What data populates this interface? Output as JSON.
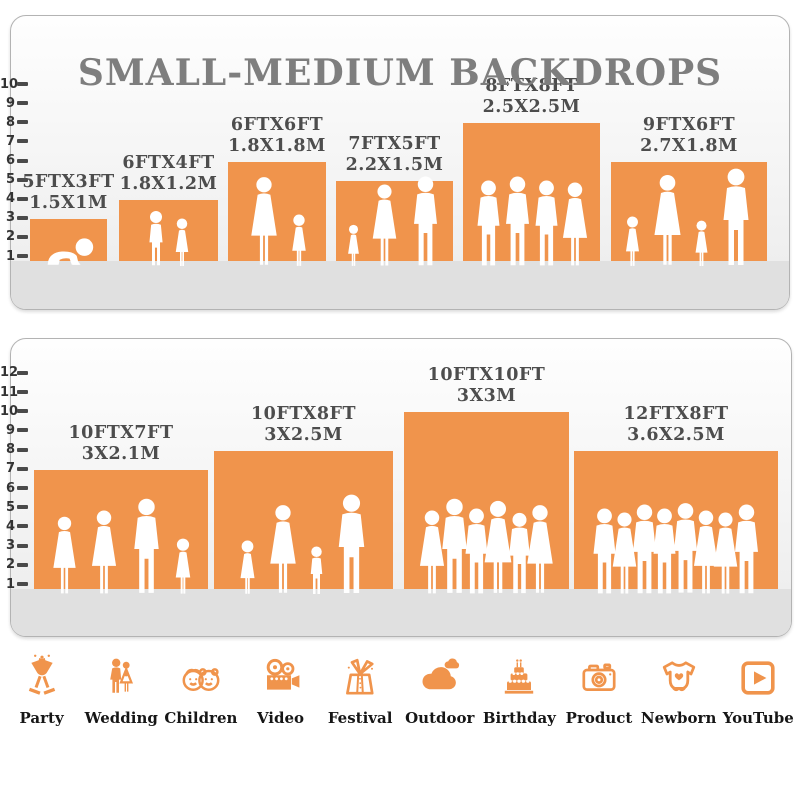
{
  "title": "SMALL-MEDIUM BACKDROPS",
  "colors": {
    "orange": "#F0944C",
    "title_text": "#7E7E7E",
    "bar_label_text": "#4D4D4D",
    "tick_text": "#333333",
    "panel_border": "#B3B3B3",
    "floor": "#E0E0E0",
    "silhouette": "#FFFFFF"
  },
  "chart_data": [
    {
      "type": "bar",
      "panel": "top",
      "title": "",
      "yticks": [
        1,
        2,
        3,
        4,
        5,
        6,
        7,
        8,
        9,
        10
      ],
      "ylim": [
        0,
        10
      ],
      "grid": false,
      "legend": false,
      "categories": [
        "5FTX3FT",
        "6FTX4FT",
        "6FTX6FT",
        "7FTX5FT",
        "8FTX8FT",
        "9FTX6FT"
      ],
      "categories_metric": [
        "1.5X1M",
        "1.8X1.2M",
        "1.8X1.8M",
        "2.2X1.5M",
        "2.5X2.5M",
        "2.7X1.8M"
      ],
      "values": [
        3,
        4,
        6,
        5,
        8,
        6
      ],
      "figures": [
        [
          "baby"
        ],
        [
          "boy",
          "girl"
        ],
        [
          "woman",
          "girl"
        ],
        [
          "girl",
          "woman",
          "man"
        ],
        [
          "man",
          "man",
          "man",
          "woman"
        ],
        [
          "girl",
          "woman",
          "girl",
          "man"
        ]
      ]
    },
    {
      "type": "bar",
      "panel": "bottom",
      "title": "",
      "yticks": [
        1,
        2,
        3,
        4,
        5,
        6,
        7,
        8,
        9,
        10,
        11,
        12
      ],
      "ylim": [
        0,
        12
      ],
      "grid": false,
      "legend": false,
      "categories": [
        "10FTX7FT",
        "10FTX8FT",
        "10FTX10FT",
        "12FTX8FT"
      ],
      "categories_metric": [
        "3X2.1M",
        "3X2.5M",
        "3X3M",
        "3.6X2.5M"
      ],
      "values": [
        7,
        8,
        10,
        8
      ],
      "figures": [
        [
          "woman",
          "woman",
          "man",
          "girl"
        ],
        [
          "girl",
          "woman",
          "boy",
          "man"
        ],
        [
          "woman",
          "man",
          "man",
          "woman",
          "man",
          "woman"
        ],
        [
          "man",
          "woman",
          "man",
          "man",
          "man",
          "woman",
          "woman",
          "man"
        ]
      ]
    }
  ],
  "icons": [
    {
      "name": "party",
      "label": "Party"
    },
    {
      "name": "wedding",
      "label": "Wedding"
    },
    {
      "name": "children",
      "label": "Children"
    },
    {
      "name": "video",
      "label": "Video"
    },
    {
      "name": "festival",
      "label": "Festival"
    },
    {
      "name": "outdoor",
      "label": "Outdoor"
    },
    {
      "name": "birthday",
      "label": "Birthday"
    },
    {
      "name": "product",
      "label": "Product"
    },
    {
      "name": "newborn",
      "label": "Newborn"
    },
    {
      "name": "youtube",
      "label": "YouTube"
    }
  ]
}
